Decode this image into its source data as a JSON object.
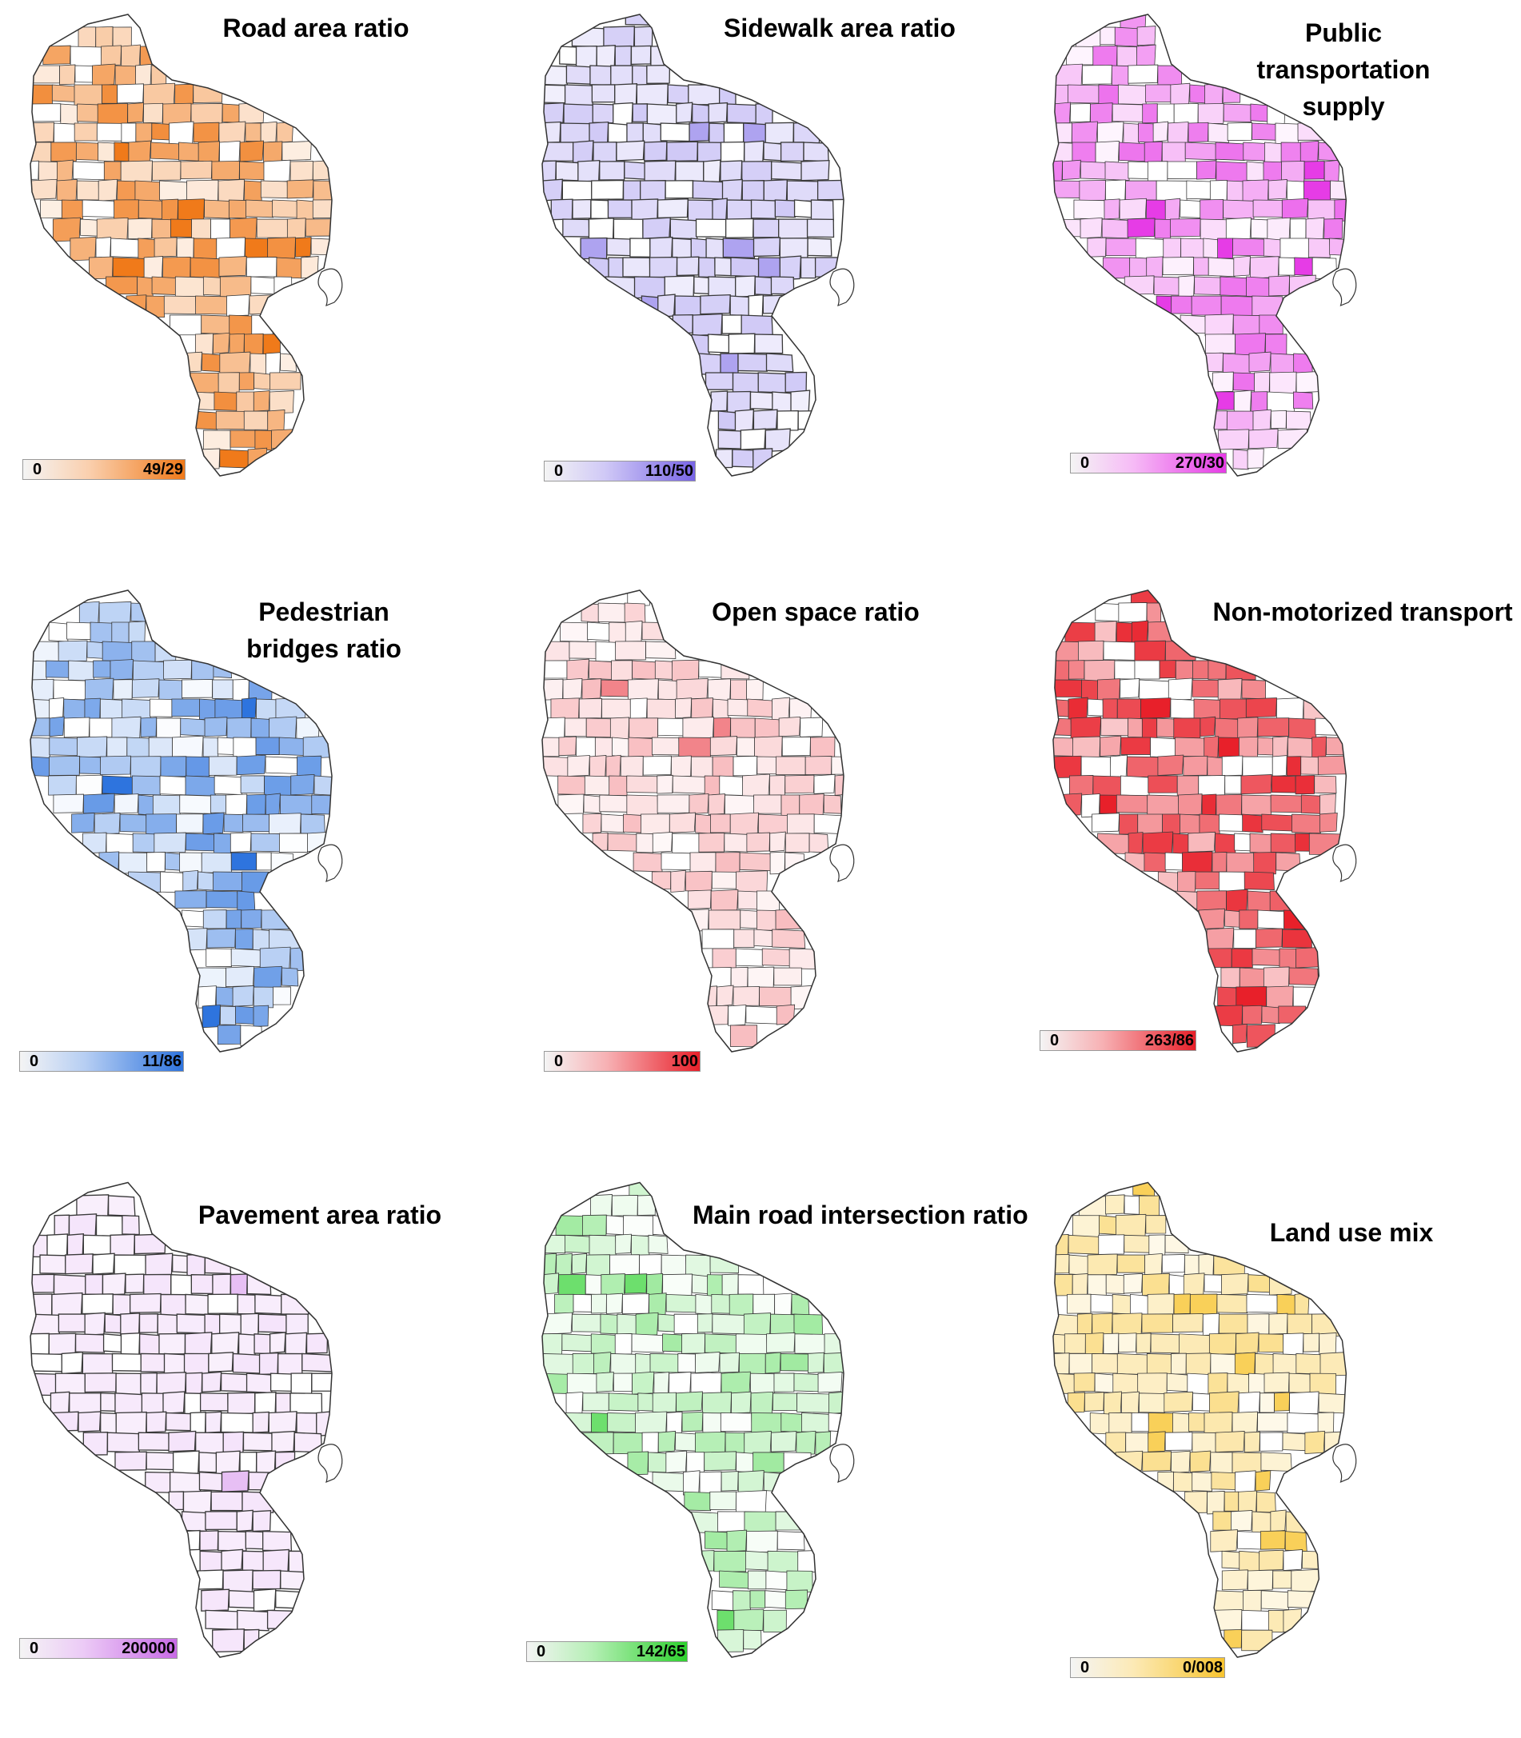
{
  "maps": [
    {
      "title": "Road area ratio",
      "legend_min": "0",
      "legend_max": "49/29",
      "color": "#f07a1a",
      "level_range": [
        0.12,
        0.85
      ]
    },
    {
      "title": "Sidewalk area ratio",
      "legend_min": "0",
      "legend_max": "110/50",
      "color": "#7865e6",
      "level_range": [
        0.1,
        0.35
      ]
    },
    {
      "title": "Public transportation supply",
      "legend_min": "0",
      "legend_max": "270/30",
      "color": "#e63ce6",
      "level_range": [
        0.05,
        0.75
      ]
    },
    {
      "title": "Pedestrian bridges ratio",
      "legend_min": "0",
      "legend_max": "11/86",
      "color": "#2e74de",
      "level_range": [
        0.0,
        0.75
      ]
    },
    {
      "title": "Open space ratio",
      "legend_min": "0",
      "legend_max": "100",
      "color": "#e8202a",
      "level_range": [
        0.03,
        0.3
      ]
    },
    {
      "title": "Non-motorized transport",
      "legend_min": "0",
      "legend_max": "263/86",
      "color": "#e8202a",
      "level_range": [
        0.25,
        0.95
      ]
    },
    {
      "title": "Pavement area ratio",
      "legend_min": "0",
      "legend_max": "200000",
      "color": "#c86be6",
      "level_range": [
        0.1,
        0.18
      ]
    },
    {
      "title": "Main road intersection ratio",
      "legend_min": "0",
      "legend_max": "142/65",
      "color": "#2ed12e",
      "level_range": [
        0.0,
        0.45
      ]
    },
    {
      "title": "Land use mix",
      "legend_min": "0",
      "legend_max": "0/008",
      "color": "#f7c430",
      "level_range": [
        0.1,
        0.55
      ]
    }
  ]
}
